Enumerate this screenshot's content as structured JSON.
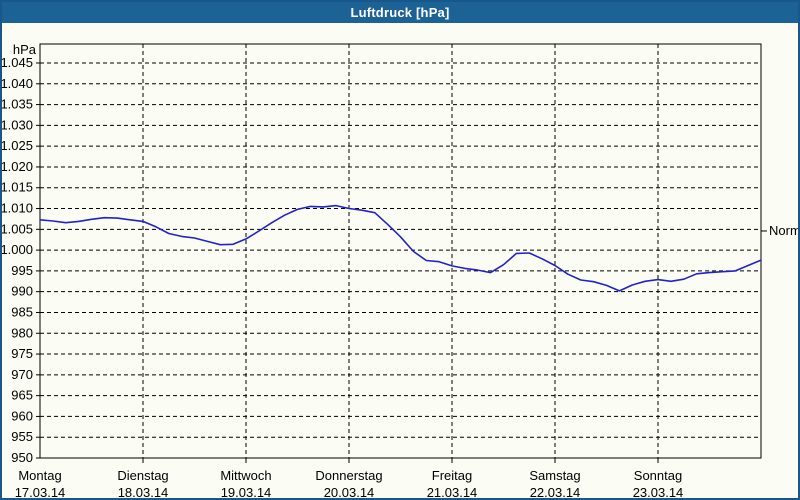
{
  "window": {
    "title": "Luftdruck [hPa]"
  },
  "colors": {
    "titlebar": "#1d6295",
    "window_border": "#17578b",
    "background": "#fbfdf5",
    "line": "#2222cc",
    "grid": "#000000",
    "text": "#000000",
    "title_text": "#ffffff"
  },
  "chart_data": {
    "type": "line",
    "title": "Luftdruck [hPa]",
    "unit_label": "hPa",
    "grid": "dashed",
    "ylim": [
      950,
      1045
    ],
    "ytick_step": 5,
    "yticks": [
      {
        "value": 1045,
        "label": "1.045"
      },
      {
        "value": 1040,
        "label": "1.040"
      },
      {
        "value": 1035,
        "label": "1.035"
      },
      {
        "value": 1030,
        "label": "1.030"
      },
      {
        "value": 1025,
        "label": "1.025"
      },
      {
        "value": 1020,
        "label": "1.020"
      },
      {
        "value": 1015,
        "label": "1.015"
      },
      {
        "value": 1010,
        "label": "1.010"
      },
      {
        "value": 1005,
        "label": "1.005"
      },
      {
        "value": 1000,
        "label": "1.000"
      },
      {
        "value": 995,
        "label": "995"
      },
      {
        "value": 990,
        "label": "990"
      },
      {
        "value": 985,
        "label": "985"
      },
      {
        "value": 980,
        "label": "980"
      },
      {
        "value": 975,
        "label": "975"
      },
      {
        "value": 970,
        "label": "970"
      },
      {
        "value": 965,
        "label": "965"
      },
      {
        "value": 960,
        "label": "960"
      },
      {
        "value": 955,
        "label": "955"
      },
      {
        "value": 950,
        "label": "950"
      }
    ],
    "x_days": [
      {
        "name": "Montag",
        "date": "17.03.14"
      },
      {
        "name": "Dienstag",
        "date": "18.03.14"
      },
      {
        "name": "Mittwoch",
        "date": "19.03.14"
      },
      {
        "name": "Donnerstag",
        "date": "20.03.14"
      },
      {
        "name": "Freitag",
        "date": "21.03.14"
      },
      {
        "name": "Samstag",
        "date": "22.03.14"
      },
      {
        "name": "Sonntag",
        "date": "23.03.14"
      }
    ],
    "x_unit_hours_per_point": 3,
    "x_total_hours": 168,
    "normal_marker": {
      "label": "Normal",
      "value": 1004.6
    },
    "series": [
      {
        "name": "Luftdruck",
        "color": "#2222cc",
        "values": [
          1007.3,
          1007.0,
          1006.6,
          1006.9,
          1007.4,
          1007.8,
          1007.7,
          1007.3,
          1006.9,
          1005.6,
          1004.0,
          1003.3,
          1002.9,
          1002.1,
          1001.3,
          1001.4,
          1002.7,
          1004.6,
          1006.6,
          1008.4,
          1009.8,
          1010.5,
          1010.4,
          1010.7,
          1010.0,
          1009.6,
          1009.0,
          1006.2,
          1003.2,
          999.7,
          997.5,
          997.2,
          996.2,
          995.6,
          995.2,
          994.6,
          996.5,
          999.2,
          999.3,
          997.9,
          996.3,
          994.2,
          992.8,
          992.4,
          991.5,
          990.2,
          991.6,
          992.5,
          992.9,
          992.5,
          993.0,
          994.3,
          994.6,
          994.8,
          995.0,
          996.3,
          997.6
        ]
      }
    ]
  }
}
